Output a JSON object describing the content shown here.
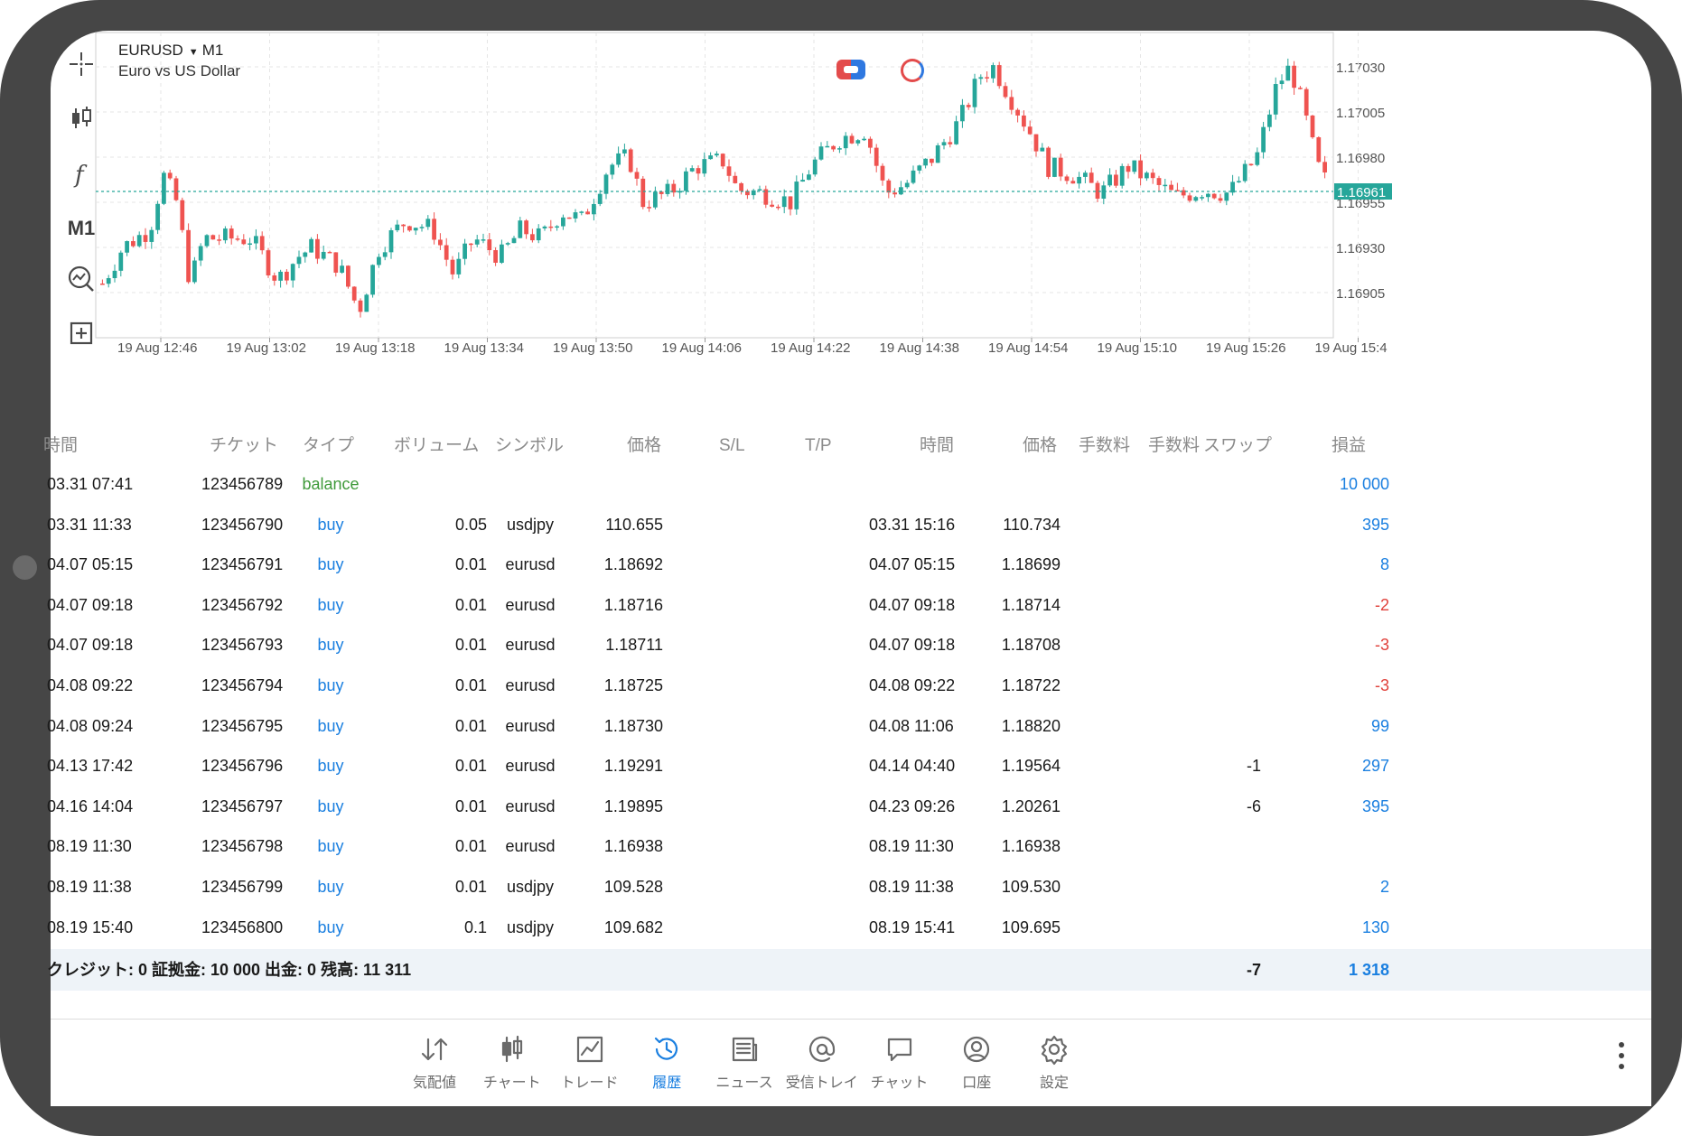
{
  "chart": {
    "symbol": "EURUSD",
    "timeframe": "M1",
    "description": "Euro vs US Dollar",
    "toolbar": {
      "timeframe_label": "M1"
    },
    "price_levels": [
      "1.17030",
      "1.17005",
      "1.16980",
      "1.16955",
      "1.16930",
      "1.16905"
    ],
    "current_price": "1.16961",
    "time_labels": [
      "19 Aug 12:46",
      "19 Aug 13:02",
      "19 Aug 13:18",
      "19 Aug 13:34",
      "19 Aug 13:50",
      "19 Aug 14:06",
      "19 Aug 14:22",
      "19 Aug 14:38",
      "19 Aug 14:54",
      "19 Aug 15:10",
      "19 Aug 15:26",
      "19 Aug 15:4"
    ],
    "colors": {
      "up": "#26a69a",
      "down": "#ef5350",
      "price_line": "#26a69a",
      "grid": "#e6e6e6"
    }
  },
  "history": {
    "headers": {
      "time_open": "時間",
      "ticket": "チケット",
      "type": "タイプ",
      "volume": "ボリューム",
      "symbol": "シンボル",
      "price_open": "価格",
      "sl": "S/L",
      "tp": "T/P",
      "time_close": "時間",
      "price_close": "価格",
      "commission1": "手数料",
      "commission2": "手数料",
      "swap": "スワップ",
      "profit": "損益"
    },
    "rows": [
      {
        "time_open": "03.31 07:41",
        "ticket": "123456789",
        "type": "balance",
        "volume": "",
        "symbol": "",
        "price_open": "",
        "time_close": "",
        "price_close": "",
        "swap": "",
        "profit": "10 000",
        "profit_color": "blue"
      },
      {
        "time_open": "03.31 11:33",
        "ticket": "123456790",
        "type": "buy",
        "volume": "0.05",
        "symbol": "usdjpy",
        "price_open": "110.655",
        "time_close": "03.31 15:16",
        "price_close": "110.734",
        "swap": "",
        "profit": "395",
        "profit_color": "blue"
      },
      {
        "time_open": "04.07 05:15",
        "ticket": "123456791",
        "type": "buy",
        "volume": "0.01",
        "symbol": "eurusd",
        "price_open": "1.18692",
        "time_close": "04.07 05:15",
        "price_close": "1.18699",
        "swap": "",
        "profit": "8",
        "profit_color": "blue"
      },
      {
        "time_open": "04.07 09:18",
        "ticket": "123456792",
        "type": "buy",
        "volume": "0.01",
        "symbol": "eurusd",
        "price_open": "1.18716",
        "time_close": "04.07 09:18",
        "price_close": "1.18714",
        "swap": "",
        "profit": "-2",
        "profit_color": "red"
      },
      {
        "time_open": "04.07 09:18",
        "ticket": "123456793",
        "type": "buy",
        "volume": "0.01",
        "symbol": "eurusd",
        "price_open": "1.18711",
        "time_close": "04.07 09:18",
        "price_close": "1.18708",
        "swap": "",
        "profit": "-3",
        "profit_color": "red"
      },
      {
        "time_open": "04.08 09:22",
        "ticket": "123456794",
        "type": "buy",
        "volume": "0.01",
        "symbol": "eurusd",
        "price_open": "1.18725",
        "time_close": "04.08 09:22",
        "price_close": "1.18722",
        "swap": "",
        "profit": "-3",
        "profit_color": "red"
      },
      {
        "time_open": "04.08 09:24",
        "ticket": "123456795",
        "type": "buy",
        "volume": "0.01",
        "symbol": "eurusd",
        "price_open": "1.18730",
        "time_close": "04.08 11:06",
        "price_close": "1.18820",
        "swap": "",
        "profit": "99",
        "profit_color": "blue"
      },
      {
        "time_open": "04.13 17:42",
        "ticket": "123456796",
        "type": "buy",
        "volume": "0.01",
        "symbol": "eurusd",
        "price_open": "1.19291",
        "time_close": "04.14 04:40",
        "price_close": "1.19564",
        "swap": "-1",
        "profit": "297",
        "profit_color": "blue"
      },
      {
        "time_open": "04.16 14:04",
        "ticket": "123456797",
        "type": "buy",
        "volume": "0.01",
        "symbol": "eurusd",
        "price_open": "1.19895",
        "time_close": "04.23 09:26",
        "price_close": "1.20261",
        "swap": "-6",
        "profit": "395",
        "profit_color": "blue"
      },
      {
        "time_open": "08.19 11:30",
        "ticket": "123456798",
        "type": "buy",
        "volume": "0.01",
        "symbol": "eurusd",
        "price_open": "1.16938",
        "time_close": "08.19 11:30",
        "price_close": "1.16938",
        "swap": "",
        "profit": "",
        "profit_color": "blue"
      },
      {
        "time_open": "08.19 11:38",
        "ticket": "123456799",
        "type": "buy",
        "volume": "0.01",
        "symbol": "usdjpy",
        "price_open": "109.528",
        "time_close": "08.19 11:38",
        "price_close": "109.530",
        "swap": "",
        "profit": "2",
        "profit_color": "blue"
      },
      {
        "time_open": "08.19 15:40",
        "ticket": "123456800",
        "type": "buy",
        "volume": "0.1",
        "symbol": "usdjpy",
        "price_open": "109.682",
        "time_close": "08.19 15:41",
        "price_close": "109.695",
        "swap": "",
        "profit": "130",
        "profit_color": "blue"
      }
    ],
    "summary": {
      "text": "クレジット: 0 証拠金: 10 000 出金: 0 残高: 11 311",
      "swap_total": "-7",
      "profit_total": "1 318"
    }
  },
  "nav": {
    "items": [
      {
        "label": "気配値",
        "icon": "quotes-icon",
        "active": false
      },
      {
        "label": "チャート",
        "icon": "chart-icon",
        "active": false
      },
      {
        "label": "トレード",
        "icon": "trade-icon",
        "active": false
      },
      {
        "label": "履歴",
        "icon": "history-icon",
        "active": true
      },
      {
        "label": "ニュース",
        "icon": "news-icon",
        "active": false
      },
      {
        "label": "受信トレイ",
        "icon": "mailbox-icon",
        "active": false
      },
      {
        "label": "チャット",
        "icon": "chat-icon",
        "active": false
      },
      {
        "label": "口座",
        "icon": "account-icon",
        "active": false
      },
      {
        "label": "設定",
        "icon": "settings-icon",
        "active": false
      }
    ],
    "colors": {
      "active": "#1a7fe0",
      "inactive": "#6a6a6a"
    }
  }
}
